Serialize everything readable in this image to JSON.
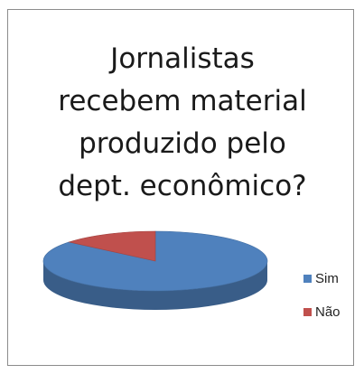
{
  "chart_data": {
    "type": "pie",
    "title": "Jornalistas\nrecebem material\nproduzido pelo\ndept. econômico?",
    "categories": [
      "Sim",
      "Não"
    ],
    "values": [
      86,
      14
    ],
    "colors": [
      "#4f81bd",
      "#c0504d"
    ],
    "legend_position": "right",
    "style": "3d"
  }
}
